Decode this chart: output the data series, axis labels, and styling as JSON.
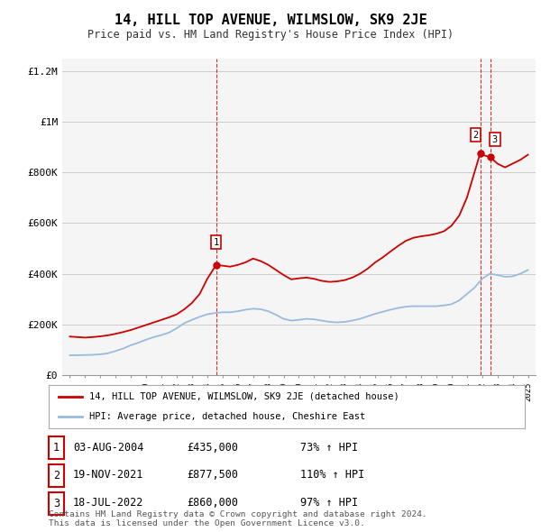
{
  "title": "14, HILL TOP AVENUE, WILMSLOW, SK9 2JE",
  "subtitle": "Price paid vs. HM Land Registry's House Price Index (HPI)",
  "legend_label_red": "14, HILL TOP AVENUE, WILMSLOW, SK9 2JE (detached house)",
  "legend_label_blue": "HPI: Average price, detached house, Cheshire East",
  "footer": "Contains HM Land Registry data © Crown copyright and database right 2024.\nThis data is licensed under the Open Government Licence v3.0.",
  "ylim": [
    0,
    1250000
  ],
  "yticks": [
    0,
    200000,
    400000,
    600000,
    800000,
    1000000,
    1200000
  ],
  "ytick_labels": [
    "£0",
    "£200K",
    "£400K",
    "£600K",
    "£800K",
    "£1M",
    "£1.2M"
  ],
  "xlim_start": 1994.5,
  "xlim_end": 2025.5,
  "sale_points": [
    {
      "num": 1,
      "year": 2004.58,
      "price": 435000,
      "date": "03-AUG-2004",
      "price_str": "£435,000",
      "pct": "73% ↑ HPI"
    },
    {
      "num": 2,
      "year": 2021.88,
      "price": 877500,
      "date": "19-NOV-2021",
      "price_str": "£877,500",
      "pct": "110% ↑ HPI"
    },
    {
      "num": 3,
      "year": 2022.54,
      "price": 860000,
      "date": "18-JUL-2022",
      "price_str": "£860,000",
      "pct": "97% ↑ HPI"
    }
  ],
  "hpi_years": [
    1995,
    1995.5,
    1996,
    1996.5,
    1997,
    1997.5,
    1998,
    1998.5,
    1999,
    1999.5,
    2000,
    2000.5,
    2001,
    2001.5,
    2002,
    2002.5,
    2003,
    2003.5,
    2004,
    2004.5,
    2005,
    2005.5,
    2006,
    2006.5,
    2007,
    2007.5,
    2008,
    2008.5,
    2009,
    2009.5,
    2010,
    2010.5,
    2011,
    2011.5,
    2012,
    2012.5,
    2013,
    2013.5,
    2014,
    2014.5,
    2015,
    2015.5,
    2016,
    2016.5,
    2017,
    2017.5,
    2018,
    2018.5,
    2019,
    2019.5,
    2020,
    2020.5,
    2021,
    2021.5,
    2022,
    2022.5,
    2023,
    2023.5,
    2024,
    2024.5,
    2025
  ],
  "hpi_values": [
    78000,
    78500,
    79000,
    80000,
    82000,
    86000,
    95000,
    105000,
    118000,
    128000,
    140000,
    150000,
    158000,
    168000,
    185000,
    205000,
    218000,
    230000,
    240000,
    245000,
    248000,
    248000,
    252000,
    258000,
    262000,
    260000,
    252000,
    238000,
    222000,
    215000,
    218000,
    222000,
    220000,
    215000,
    210000,
    208000,
    210000,
    215000,
    222000,
    232000,
    242000,
    250000,
    258000,
    265000,
    270000,
    272000,
    272000,
    272000,
    272000,
    275000,
    280000,
    295000,
    320000,
    345000,
    380000,
    400000,
    395000,
    388000,
    390000,
    400000,
    415000
  ],
  "red_years": [
    1995,
    1995.5,
    1996,
    1996.5,
    1997,
    1997.5,
    1998,
    1998.5,
    1999,
    1999.5,
    2000,
    2000.5,
    2001,
    2001.5,
    2002,
    2002.5,
    2003,
    2003.5,
    2004,
    2004.58,
    2005,
    2005.5,
    2006,
    2006.5,
    2007,
    2007.5,
    2008,
    2008.5,
    2009,
    2009.5,
    2010,
    2010.5,
    2011,
    2011.5,
    2012,
    2012.5,
    2013,
    2013.5,
    2014,
    2014.5,
    2015,
    2015.5,
    2016,
    2016.5,
    2017,
    2017.5,
    2018,
    2018.5,
    2019,
    2019.5,
    2020,
    2020.5,
    2021,
    2021.88,
    2022,
    2022.54,
    2023,
    2023.5,
    2024,
    2024.5,
    2025
  ],
  "red_values": [
    152000,
    150000,
    148000,
    150000,
    153000,
    157000,
    163000,
    170000,
    178000,
    188000,
    198000,
    208000,
    218000,
    228000,
    240000,
    260000,
    285000,
    320000,
    380000,
    435000,
    432000,
    428000,
    435000,
    445000,
    460000,
    450000,
    435000,
    415000,
    395000,
    378000,
    382000,
    385000,
    380000,
    372000,
    368000,
    370000,
    375000,
    385000,
    400000,
    420000,
    445000,
    465000,
    488000,
    510000,
    530000,
    542000,
    548000,
    552000,
    558000,
    568000,
    590000,
    630000,
    700000,
    877500,
    870000,
    860000,
    835000,
    820000,
    835000,
    850000,
    870000
  ],
  "vline_years": [
    2004.58,
    2021.88,
    2022.54
  ],
  "bg_color": "#f5f5f5",
  "red_color": "#cc0000",
  "blue_color": "#99bbdd",
  "grid_color": "#cccccc"
}
